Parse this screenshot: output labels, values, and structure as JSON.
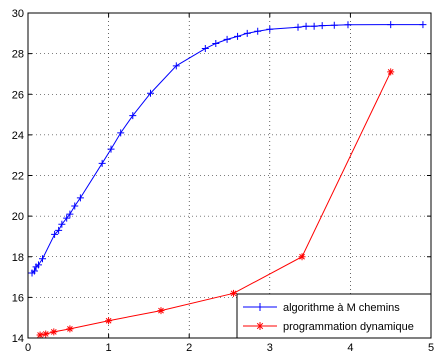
{
  "chart_data": {
    "type": "line",
    "title": "",
    "xlabel": "",
    "ylabel": "",
    "xlim": [
      0,
      5
    ],
    "ylim": [
      14,
      30
    ],
    "xticks": [
      0,
      1,
      2,
      3,
      4,
      5
    ],
    "yticks": [
      14,
      16,
      18,
      20,
      22,
      24,
      26,
      28,
      30
    ],
    "grid": "dotted",
    "legend_position": "bottom-right",
    "series": [
      {
        "name": "algorithme à M chemins",
        "color": "#0000ff",
        "marker": "+",
        "x": [
          0.05,
          0.08,
          0.1,
          0.13,
          0.18,
          0.33,
          0.38,
          0.42,
          0.48,
          0.52,
          0.58,
          0.65,
          0.92,
          1.03,
          1.15,
          1.3,
          1.52,
          1.84,
          2.2,
          2.33,
          2.47,
          2.6,
          2.72,
          2.85,
          3.0,
          3.35,
          3.45,
          3.55,
          3.65,
          3.8,
          3.97,
          4.5,
          4.9
        ],
        "y": [
          17.2,
          17.3,
          17.5,
          17.6,
          17.9,
          19.1,
          19.3,
          19.6,
          19.9,
          20.1,
          20.5,
          20.9,
          22.6,
          23.3,
          24.1,
          24.95,
          26.05,
          27.4,
          28.25,
          28.5,
          28.7,
          28.85,
          29.0,
          29.1,
          29.2,
          29.3,
          29.35,
          29.35,
          29.38,
          29.4,
          29.42,
          29.43,
          29.43
        ]
      },
      {
        "name": "programmation dynamique",
        "color": "#ff0000",
        "marker": "*",
        "x": [
          0.15,
          0.22,
          0.32,
          0.52,
          1.0,
          1.65,
          2.55,
          3.4,
          4.5
        ],
        "y": [
          14.15,
          14.2,
          14.3,
          14.45,
          14.85,
          15.35,
          16.2,
          18.0,
          27.1
        ]
      }
    ]
  }
}
